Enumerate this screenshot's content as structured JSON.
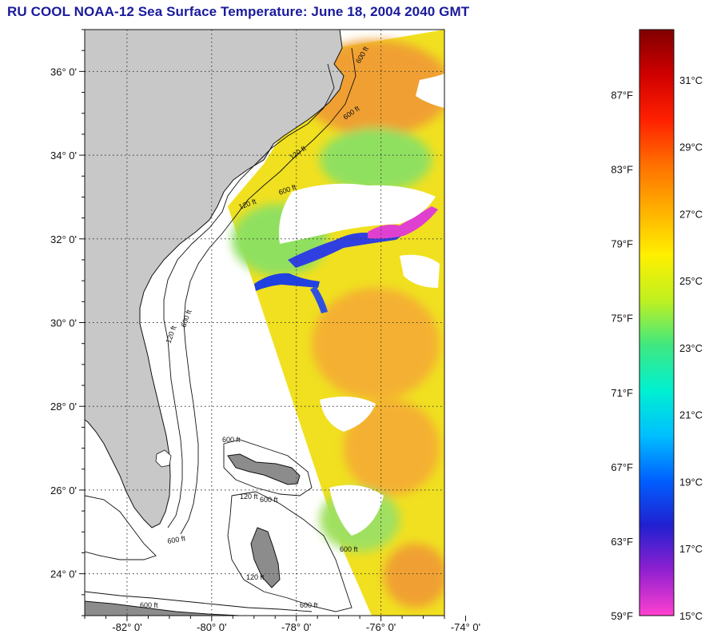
{
  "title": "RU COOL  NOAA-12  Sea Surface Temperature:  June 18, 2004 2040 GMT",
  "map": {
    "lat_ticks": [
      {
        "value": 36,
        "label": "36° 0'"
      },
      {
        "value": 34,
        "label": "34° 0'"
      },
      {
        "value": 32,
        "label": "32° 0'"
      },
      {
        "value": 30,
        "label": "30° 0'"
      },
      {
        "value": 28,
        "label": "28° 0'"
      },
      {
        "value": 26,
        "label": "26° 0'"
      },
      {
        "value": 24,
        "label": "24° 0'"
      }
    ],
    "lon_ticks": [
      {
        "value": -82,
        "label": "-82° 0'"
      },
      {
        "value": -80,
        "label": "-80° 0'"
      },
      {
        "value": -78,
        "label": "-78° 0'"
      },
      {
        "value": -76,
        "label": "-76° 0'"
      },
      {
        "value": -74,
        "label": "-74° 0'"
      }
    ],
    "lat_range": [
      23,
      37
    ],
    "lon_range": [
      -83,
      -74.5
    ],
    "grid": "dotted",
    "depth_contour_labels": [
      "120 ft",
      "600 ft"
    ],
    "colors": {
      "land": "#c8c8c8",
      "no_data": "#ffffff",
      "warm_water": "#f2a030",
      "mid_water": "#f0e020",
      "cool_water": "#80e060"
    }
  },
  "colorbar": {
    "fahrenheit_labels": [
      {
        "value": 87,
        "label": "87°F"
      },
      {
        "value": 83,
        "label": "83°F"
      },
      {
        "value": 79,
        "label": "79°F"
      },
      {
        "value": 75,
        "label": "75°F"
      },
      {
        "value": 71,
        "label": "71°F"
      },
      {
        "value": 67,
        "label": "67°F"
      },
      {
        "value": 63,
        "label": "63°F"
      },
      {
        "value": 59,
        "label": "59°F"
      }
    ],
    "celsius_labels": [
      {
        "value": 31,
        "label": "31°C"
      },
      {
        "value": 29,
        "label": "29°C"
      },
      {
        "value": 27,
        "label": "27°C"
      },
      {
        "value": 25,
        "label": "25°C"
      },
      {
        "value": 23,
        "label": "23°C"
      },
      {
        "value": 21,
        "label": "21°C"
      },
      {
        "value": 19,
        "label": "19°C"
      },
      {
        "value": 17,
        "label": "17°C"
      },
      {
        "value": 15,
        "label": "15°C"
      }
    ],
    "range_c": [
      15,
      32.5
    ],
    "stops": [
      "#ff40d0",
      "#9020d0",
      "#2020d0",
      "#0060ff",
      "#00c0ff",
      "#00f0d0",
      "#40e880",
      "#c0f020",
      "#fff000",
      "#ffb000",
      "#ff7000",
      "#ff2000",
      "#d00000",
      "#800000"
    ]
  }
}
